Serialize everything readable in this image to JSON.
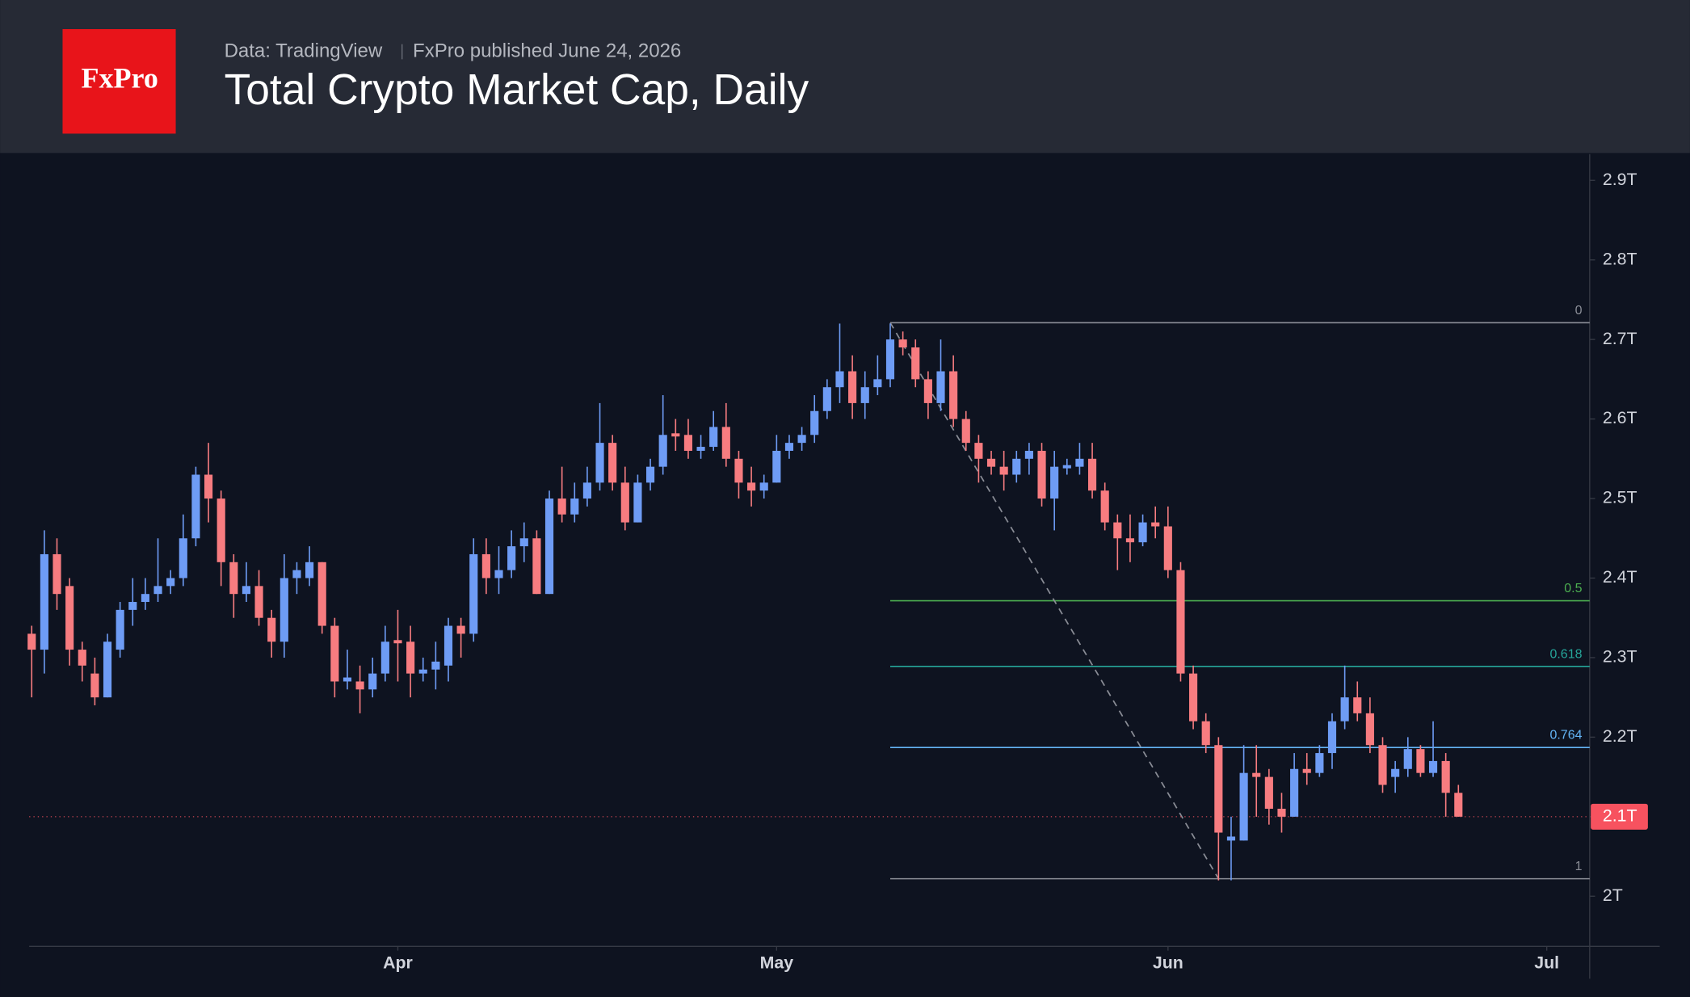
{
  "header": {
    "logo": "FxPro",
    "source": "Data: TradingView",
    "published": "FxPro published June 24, 2026"
  },
  "chart_data": {
    "type": "candlestick",
    "title": "Total Crypto Market Cap, Daily",
    "up_color": "#6e9cf5",
    "down_color": "#f77c80",
    "xlim": [
      -0.2,
      123.4
    ],
    "xticks": [
      {
        "value": 29,
        "label": "Apr"
      },
      {
        "value": 59,
        "label": "May"
      },
      {
        "value": 90,
        "label": "Jun"
      },
      {
        "value": 120,
        "label": "Jul"
      }
    ],
    "ylim": [
      1.937,
      2.933
    ],
    "yticks": [
      {
        "value": 2.0,
        "label": "2T"
      },
      {
        "value": 2.1,
        "label": "2.1T"
      },
      {
        "value": 2.2,
        "label": "2.2T"
      },
      {
        "value": 2.3,
        "label": "2.3T"
      },
      {
        "value": 2.4,
        "label": "2.4T"
      },
      {
        "value": 2.5,
        "label": "2.5T"
      },
      {
        "value": 2.6,
        "label": "2.6T"
      },
      {
        "value": 2.7,
        "label": "2.7T"
      },
      {
        "value": 2.8,
        "label": "2.8T"
      },
      {
        "value": 2.9,
        "label": "2.9T"
      }
    ],
    "open": [
      2.33,
      2.31,
      2.43,
      2.39,
      2.31,
      2.28,
      2.25,
      2.31,
      2.36,
      2.37,
      2.38,
      2.39,
      2.4,
      2.45,
      2.53,
      2.5,
      2.42,
      2.38,
      2.39,
      2.35,
      2.32,
      2.4,
      2.4,
      2.42,
      2.34,
      2.27,
      2.27,
      2.26,
      2.28,
      2.322,
      2.32,
      2.28,
      2.285,
      2.29,
      2.34,
      2.33,
      2.43,
      2.4,
      2.41,
      2.44,
      2.45,
      2.38,
      2.5,
      2.48,
      2.5,
      2.52,
      2.57,
      2.52,
      2.47,
      2.52,
      2.54,
      2.582,
      2.58,
      2.56,
      2.565,
      2.59,
      2.55,
      2.52,
      2.51,
      2.52,
      2.56,
      2.57,
      2.58,
      2.61,
      2.64,
      2.66,
      2.62,
      2.64,
      2.65,
      2.7,
      2.69,
      2.65,
      2.62,
      2.66,
      2.6,
      2.57,
      2.55,
      2.54,
      2.53,
      2.55,
      2.56,
      2.5,
      2.538,
      2.54,
      2.55,
      2.51,
      2.47,
      2.45,
      2.445,
      2.47,
      2.465,
      2.41,
      2.28,
      2.22,
      2.19,
      2.07,
      2.07,
      2.155,
      2.15,
      2.11,
      2.1,
      2.16,
      2.155,
      2.18,
      2.22,
      2.25,
      2.23,
      2.19,
      2.15,
      2.16,
      2.185,
      2.155,
      2.17,
      2.13
    ],
    "high": [
      2.34,
      2.46,
      2.45,
      2.4,
      2.32,
      2.3,
      2.33,
      2.37,
      2.4,
      2.4,
      2.45,
      2.41,
      2.48,
      2.54,
      2.57,
      2.51,
      2.43,
      2.42,
      2.41,
      2.36,
      2.43,
      2.42,
      2.44,
      2.42,
      2.35,
      2.31,
      2.29,
      2.3,
      2.34,
      2.36,
      2.34,
      2.3,
      2.32,
      2.35,
      2.35,
      2.45,
      2.45,
      2.44,
      2.46,
      2.47,
      2.46,
      2.51,
      2.54,
      2.52,
      2.54,
      2.62,
      2.58,
      2.54,
      2.53,
      2.55,
      2.63,
      2.6,
      2.6,
      2.58,
      2.61,
      2.62,
      2.56,
      2.54,
      2.53,
      2.58,
      2.58,
      2.59,
      2.63,
      2.65,
      2.72,
      2.68,
      2.66,
      2.68,
      2.72,
      2.71,
      2.7,
      2.66,
      2.7,
      2.68,
      2.61,
      2.58,
      2.56,
      2.56,
      2.56,
      2.57,
      2.57,
      2.56,
      2.55,
      2.57,
      2.57,
      2.52,
      2.48,
      2.48,
      2.48,
      2.49,
      2.49,
      2.42,
      2.29,
      2.23,
      2.2,
      2.1,
      2.19,
      2.19,
      2.16,
      2.13,
      2.18,
      2.18,
      2.19,
      2.23,
      2.29,
      2.27,
      2.25,
      2.2,
      2.17,
      2.2,
      2.19,
      2.22,
      2.18,
      2.14
    ],
    "low": [
      2.25,
      2.28,
      2.36,
      2.29,
      2.27,
      2.24,
      2.25,
      2.3,
      2.34,
      2.36,
      2.37,
      2.38,
      2.39,
      2.44,
      2.47,
      2.39,
      2.35,
      2.37,
      2.34,
      2.3,
      2.3,
      2.38,
      2.39,
      2.33,
      2.25,
      2.26,
      2.23,
      2.25,
      2.27,
      2.27,
      2.25,
      2.27,
      2.26,
      2.27,
      2.3,
      2.32,
      2.38,
      2.38,
      2.4,
      2.42,
      2.38,
      2.38,
      2.47,
      2.47,
      2.49,
      2.51,
      2.51,
      2.46,
      2.47,
      2.51,
      2.53,
      2.56,
      2.55,
      2.55,
      2.56,
      2.54,
      2.5,
      2.49,
      2.5,
      2.52,
      2.55,
      2.56,
      2.57,
      2.6,
      2.62,
      2.6,
      2.6,
      2.63,
      2.64,
      2.68,
      2.64,
      2.6,
      2.61,
      2.59,
      2.56,
      2.52,
      2.53,
      2.51,
      2.52,
      2.53,
      2.49,
      2.46,
      2.53,
      2.53,
      2.5,
      2.46,
      2.41,
      2.42,
      2.44,
      2.45,
      2.4,
      2.27,
      2.21,
      2.18,
      2.02,
      2.02,
      2.07,
      2.1,
      2.09,
      2.08,
      2.1,
      2.14,
      2.15,
      2.16,
      2.21,
      2.22,
      2.18,
      2.13,
      2.13,
      2.15,
      2.15,
      2.15,
      2.1,
      2.1
    ],
    "close": [
      2.31,
      2.43,
      2.38,
      2.31,
      2.29,
      2.25,
      2.32,
      2.36,
      2.37,
      2.38,
      2.39,
      2.4,
      2.45,
      2.53,
      2.5,
      2.42,
      2.38,
      2.39,
      2.35,
      2.32,
      2.4,
      2.41,
      2.42,
      2.34,
      2.27,
      2.275,
      2.26,
      2.28,
      2.32,
      2.318,
      2.28,
      2.285,
      2.295,
      2.34,
      2.33,
      2.43,
      2.4,
      2.41,
      2.44,
      2.45,
      2.38,
      2.5,
      2.48,
      2.5,
      2.52,
      2.57,
      2.52,
      2.47,
      2.52,
      2.54,
      2.58,
      2.578,
      2.56,
      2.565,
      2.59,
      2.55,
      2.52,
      2.51,
      2.52,
      2.56,
      2.57,
      2.58,
      2.61,
      2.64,
      2.66,
      2.62,
      2.64,
      2.65,
      2.7,
      2.69,
      2.65,
      2.62,
      2.66,
      2.6,
      2.57,
      2.55,
      2.54,
      2.53,
      2.55,
      2.56,
      2.5,
      2.54,
      2.542,
      2.55,
      2.51,
      2.47,
      2.45,
      2.445,
      2.47,
      2.465,
      2.41,
      2.28,
      2.22,
      2.19,
      2.08,
      2.075,
      2.155,
      2.15,
      2.11,
      2.1,
      2.16,
      2.155,
      2.18,
      2.22,
      2.25,
      2.23,
      2.19,
      2.14,
      2.16,
      2.185,
      2.155,
      2.17,
      2.13,
      2.1
    ],
    "last_price": {
      "value": 2.1,
      "label": "2.1T",
      "color": "#f7525f"
    },
    "fib": {
      "start_x": 68,
      "levels": [
        {
          "level": 0,
          "value": 2.721,
          "color": "#8a8d96"
        },
        {
          "level": 0.5,
          "value": 2.3715,
          "color": "#4caf50"
        },
        {
          "level": 0.618,
          "value": 2.289,
          "color": "#26a69a"
        },
        {
          "level": 0.764,
          "value": 2.187,
          "color": "#64b5f6"
        },
        {
          "level": 1,
          "value": 2.022,
          "color": "#8a8d96"
        }
      ]
    },
    "trendline": {
      "x": [
        68,
        94
      ],
      "values": [
        2.721,
        2.022
      ]
    }
  }
}
